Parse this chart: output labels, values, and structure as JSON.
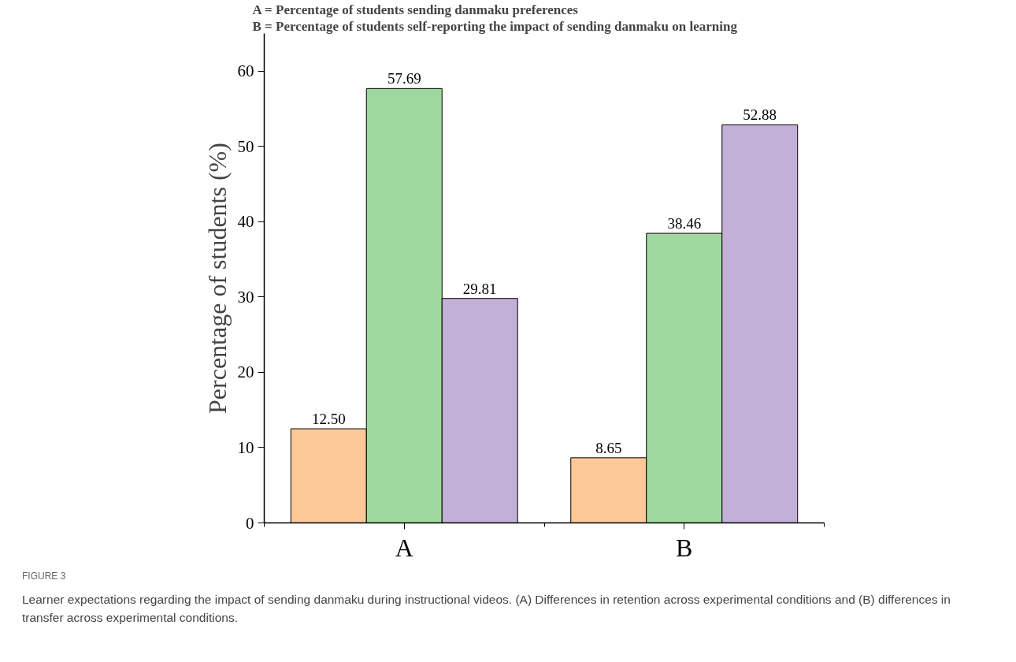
{
  "chart_data": {
    "type": "bar",
    "categories": [
      "A",
      "B"
    ],
    "series": [
      {
        "color": "#fdc897",
        "values": [
          12.5,
          8.65
        ],
        "value_labels": [
          "12.50",
          "8.65"
        ]
      },
      {
        "color": "#9fd89e",
        "values": [
          57.69,
          38.46
        ],
        "value_labels": [
          "57.69",
          "38.46"
        ]
      },
      {
        "color": "#c2b0d6",
        "values": [
          29.81,
          52.88
        ],
        "value_labels": [
          "29.81",
          "52.88"
        ]
      }
    ],
    "ylabel": "Percentage of students (%)",
    "ylim": [
      0,
      65
    ],
    "yticks": [
      0,
      10,
      20,
      30,
      40,
      50,
      60
    ],
    "grid": false,
    "annotations": [
      "A = Percentage of students sending danmaku preferences",
      "B = Percentage of students self-reporting the impact of sending danmaku on learning",
      "FIGURE 3",
      "Learner expectations regarding the impact of sending danmaku during instructional videos. (A) Differences in retention across experimental conditions and (B) differences in transfer across experimental conditions."
    ]
  }
}
